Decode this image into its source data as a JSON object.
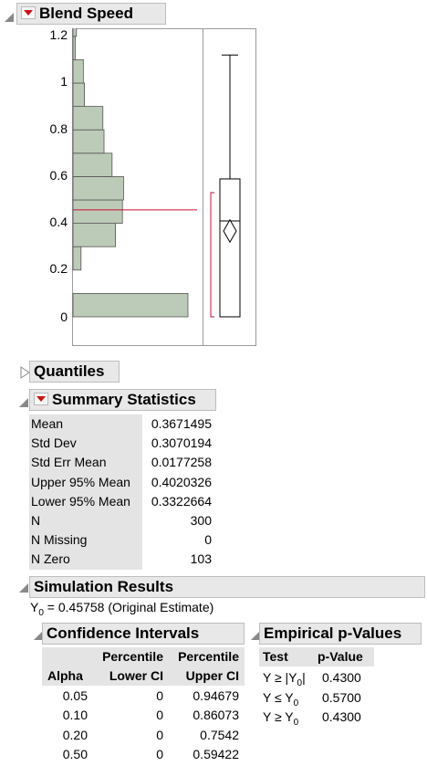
{
  "blend_speed": {
    "title": "Blend Speed",
    "y_ticks": [
      "1.2",
      "1",
      "0.8",
      "0.6",
      "0.4",
      "0.2",
      "0"
    ]
  },
  "chart_data": {
    "type": "bar",
    "orientation": "horizontal histogram",
    "bin_edges": [
      0,
      0.1,
      0.2,
      0.3,
      0.4,
      0.5,
      0.6,
      0.7,
      0.8,
      0.9,
      1.0,
      1.1,
      1.2
    ],
    "relative_heights": [
      1.0,
      0,
      0.07,
      0.37,
      0.43,
      0.44,
      0.34,
      0.27,
      0.26,
      0.1,
      0.09,
      0.02,
      0.03
    ],
    "ylim": [
      -0.1,
      1.25
    ],
    "reference_line": 0.45758,
    "box_plot": {
      "min": 0,
      "q1": 0,
      "median": 0.41,
      "q3": 0.59,
      "max": 1.12,
      "mean": 0.367,
      "ci_low": 0.33,
      "ci_high": 0.41
    }
  },
  "quantiles": {
    "title": "Quantiles"
  },
  "summary": {
    "title": "Summary Statistics",
    "rows": [
      {
        "label": "Mean",
        "value": "0.3671495"
      },
      {
        "label": "Std Dev",
        "value": "0.3070194"
      },
      {
        "label": "Std Err Mean",
        "value": "0.0177258"
      },
      {
        "label": "Upper 95% Mean",
        "value": "0.4020326"
      },
      {
        "label": "Lower 95% Mean",
        "value": "0.3322664"
      },
      {
        "label": "N",
        "value": "300"
      },
      {
        "label": "N Missing",
        "value": "0"
      },
      {
        "label": "N Zero",
        "value": "103"
      }
    ]
  },
  "simulation": {
    "title": "Simulation Results",
    "y0_prefix": "Y",
    "y0_sub": "0",
    "y0_text": " = 0.45758 (Original Estimate)"
  },
  "ci": {
    "title": "Confidence Intervals",
    "headers": {
      "alpha": "Alpha",
      "pct1": "Percentile",
      "lower": "Lower CI",
      "pct2": "Percentile",
      "upper": "Upper CI"
    },
    "rows": [
      {
        "alpha": "0.05",
        "lower": "0",
        "upper": "0.94679"
      },
      {
        "alpha": "0.10",
        "lower": "0",
        "upper": "0.86073"
      },
      {
        "alpha": "0.20",
        "lower": "0",
        "upper": "0.7542"
      },
      {
        "alpha": "0.50",
        "lower": "0",
        "upper": "0.59422"
      }
    ]
  },
  "pvalues": {
    "title": "Empirical p-Values",
    "headers": {
      "test": "Test",
      "pvalue": "p-Value"
    },
    "rows": [
      {
        "test_a": "Y ≥ |Y",
        "test_sub": "0",
        "test_b": "|",
        "value": "0.4300"
      },
      {
        "test_a": "Y ≤ Y",
        "test_sub": "0",
        "test_b": "",
        "value": "0.5700"
      },
      {
        "test_a": "Y ≥ Y",
        "test_sub": "0",
        "test_b": "",
        "value": "0.4300"
      }
    ]
  }
}
